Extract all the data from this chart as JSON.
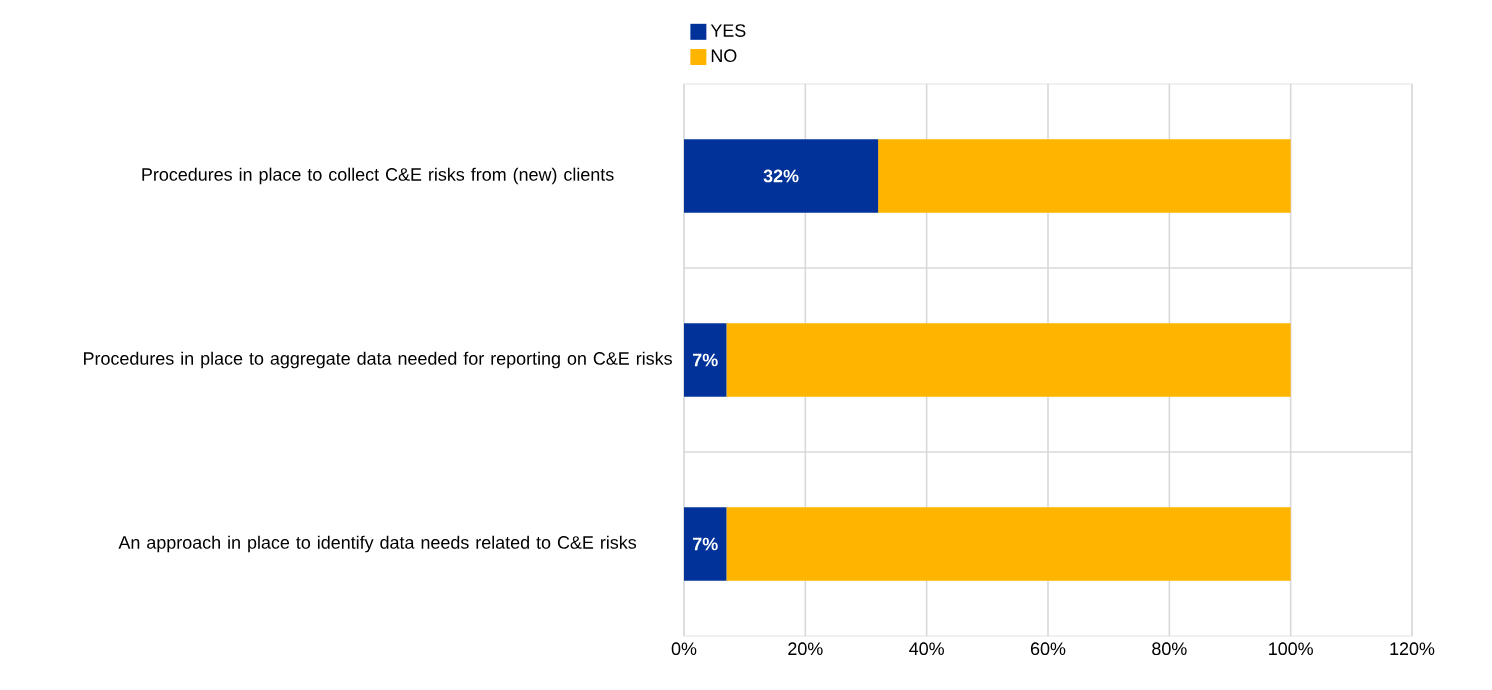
{
  "chart_data": {
    "type": "bar",
    "orientation": "horizontal",
    "stacked": true,
    "categories": [
      "Procedures in place to collect C&E risks from (new) clients",
      "Procedures in place to aggregate data needed for reporting on C&E risks",
      "An approach in place to identify data needs related to C&E risks"
    ],
    "series": [
      {
        "name": "YES",
        "color": "#003299",
        "values": [
          32,
          7,
          7
        ],
        "value_labels": [
          "32%",
          "7%",
          "7%"
        ]
      },
      {
        "name": "NO",
        "color": "#ffb400",
        "values": [
          68,
          93,
          93
        ]
      }
    ],
    "xlim": [
      0,
      120
    ],
    "xticks": [
      {
        "value": 0,
        "label": "0%"
      },
      {
        "value": 20,
        "label": "20%"
      },
      {
        "value": 40,
        "label": "40%"
      },
      {
        "value": 60,
        "label": "60%"
      },
      {
        "value": 80,
        "label": "80%"
      },
      {
        "value": 100,
        "label": "100%"
      },
      {
        "value": 120,
        "label": "120%"
      }
    ],
    "grid": true,
    "legend": "top left"
  }
}
